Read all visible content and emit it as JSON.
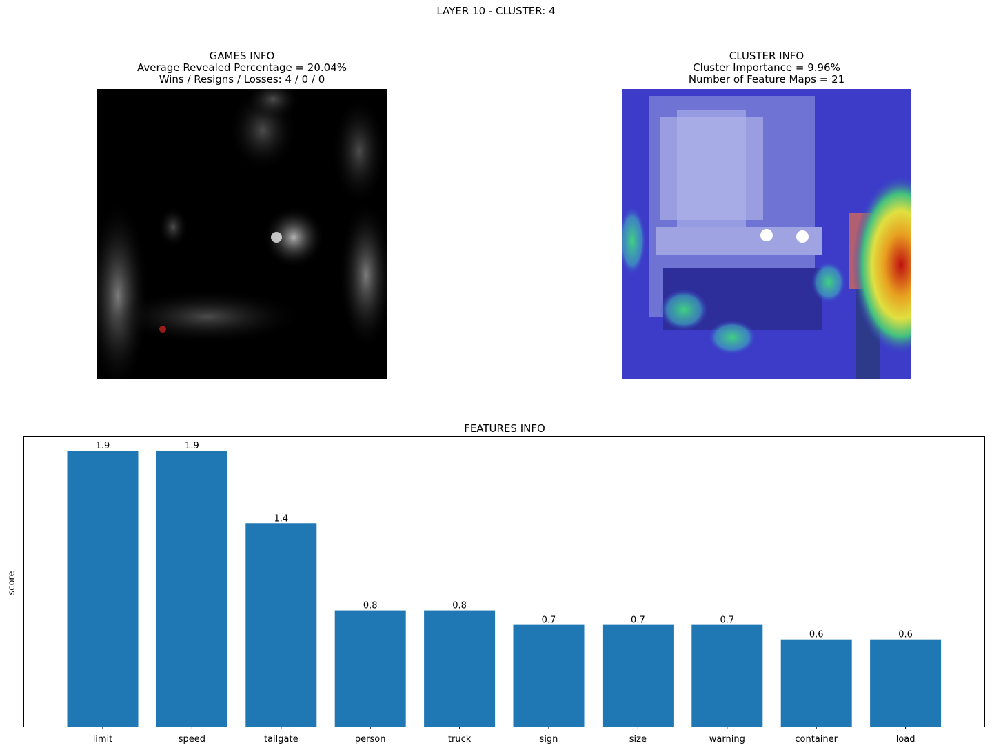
{
  "suptitle": "LAYER 10 - CLUSTER: 4",
  "games_panel": {
    "title_line1": "GAMES INFO",
    "title_line2": "Average Revealed Percentage = 20.04%",
    "title_line3": "Wins / Resigns / Losses: 4 / 0 / 0"
  },
  "cluster_panel": {
    "title_line1": "CLUSTER INFO",
    "title_line2": "Cluster Importance = 9.96%",
    "title_line3": "Number of Feature Maps = 21"
  },
  "colors": {
    "bar": "#1f77b4",
    "heat_base": "#3c3cc8",
    "heat_hot": "#d81b1b"
  },
  "chart_data": {
    "type": "bar",
    "title": "FEATURES INFO",
    "xlabel": "",
    "ylabel": "score",
    "categories": [
      "limit",
      "speed",
      "tailgate",
      "person",
      "truck",
      "sign",
      "size",
      "warning",
      "container",
      "load"
    ],
    "values": [
      1.9,
      1.9,
      1.4,
      0.8,
      0.8,
      0.7,
      0.7,
      0.7,
      0.6,
      0.6
    ],
    "value_labels": [
      "1.9",
      "1.9",
      "1.4",
      "0.8",
      "0.8",
      "0.7",
      "0.7",
      "0.7",
      "0.6",
      "0.6"
    ],
    "ylim": [
      0,
      2.0
    ],
    "grid": false,
    "yticks_visible": false
  }
}
